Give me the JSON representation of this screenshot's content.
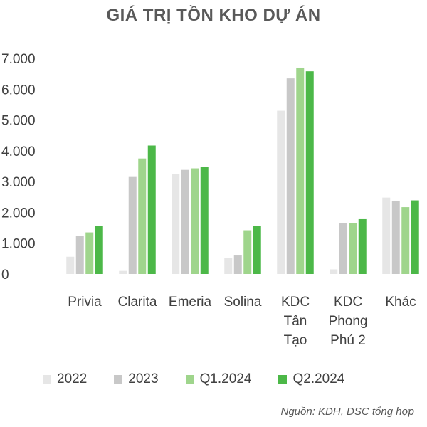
{
  "chart_data": {
    "type": "bar",
    "title": "GIÁ TRỊ TỒN KHO DỰ ÁN",
    "categories": [
      [
        "Privia"
      ],
      [
        "Clarita"
      ],
      [
        "Emeria"
      ],
      [
        "Solina"
      ],
      [
        "KDC",
        "Tân",
        "Tạo"
      ],
      [
        "KDC",
        "Phong",
        "Phú 2"
      ],
      [
        "Khác"
      ]
    ],
    "series": [
      {
        "name": "2022",
        "color": "#e6e6e6",
        "values": [
          560,
          100,
          3250,
          520,
          5300,
          150,
          2480
        ]
      },
      {
        "name": "2023",
        "color": "#c8c8c8",
        "values": [
          1230,
          3150,
          3380,
          600,
          6350,
          1660,
          2380
        ]
      },
      {
        "name": "Q1.2024",
        "color": "#9fd58c",
        "values": [
          1350,
          3750,
          3430,
          1420,
          6700,
          1650,
          2170
        ]
      },
      {
        "name": "Q2.2024",
        "color": "#4cb848",
        "values": [
          1560,
          4170,
          3480,
          1550,
          6580,
          1780,
          2390
        ]
      }
    ],
    "yticks": [
      "0",
      "1.000",
      "2.000",
      "3.000",
      "4.000",
      "5.000",
      "6.000",
      "7.000"
    ],
    "ylim": [
      0,
      7000
    ],
    "grid": false,
    "legend_position": "bottom",
    "source": "Nguồn: KDH, DSC tổng hợp"
  }
}
